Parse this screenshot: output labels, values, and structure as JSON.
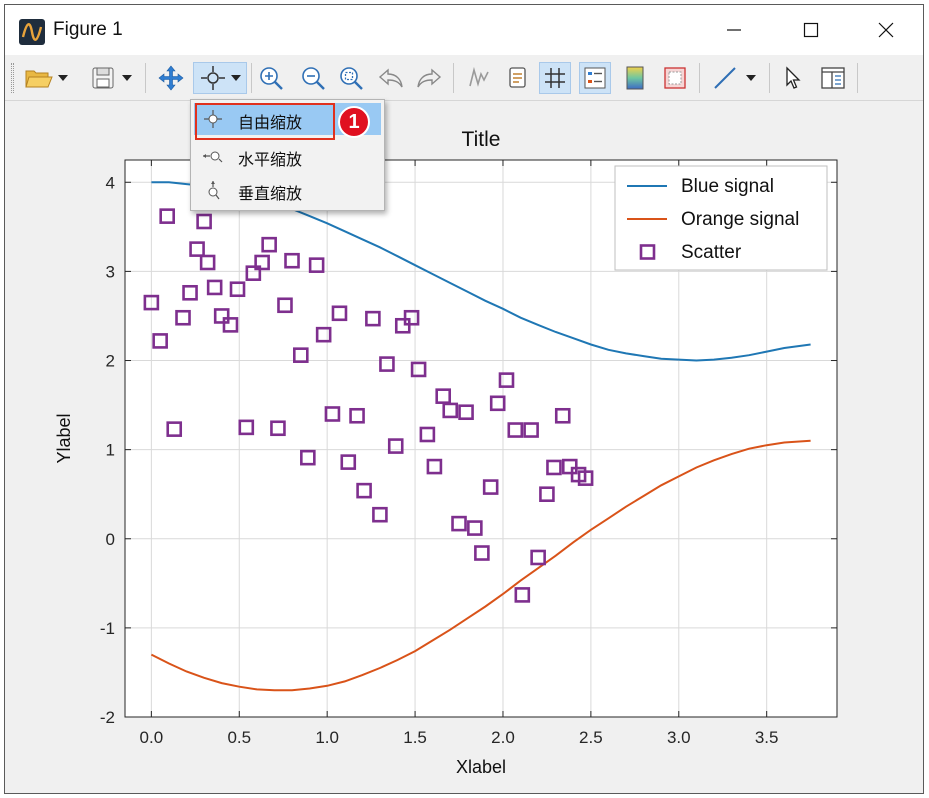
{
  "window": {
    "title": "Figure 1",
    "controls": {
      "minimize": "minimize",
      "maximize": "maximize",
      "close": "close"
    }
  },
  "toolbar": {
    "items": [
      {
        "name": "open-icon"
      },
      {
        "name": "save-icon"
      },
      {
        "name": "pan-icon"
      },
      {
        "name": "zoom-icon"
      },
      {
        "name": "zoom-in-icon"
      },
      {
        "name": "zoom-out-icon"
      },
      {
        "name": "zoom-fit-icon"
      },
      {
        "name": "undo-icon"
      },
      {
        "name": "redo-icon"
      },
      {
        "name": "signal-icon"
      },
      {
        "name": "copy-icon"
      },
      {
        "name": "grid-icon"
      },
      {
        "name": "legend-icon"
      },
      {
        "name": "colormap-icon"
      },
      {
        "name": "frame-icon"
      },
      {
        "name": "line-icon"
      },
      {
        "name": "pointer-icon"
      },
      {
        "name": "panel-icon"
      }
    ]
  },
  "zoom_menu": {
    "items": [
      {
        "label": "自由缩放",
        "selected": true
      },
      {
        "label": "水平缩放",
        "selected": false
      },
      {
        "label": "垂直缩放",
        "selected": false
      }
    ],
    "badge": "1"
  },
  "chart_data": {
    "type": "line",
    "title": "Title",
    "xlabel": "Xlabel",
    "ylabel": "Ylabel",
    "xlim": [
      -0.15,
      3.9
    ],
    "ylim": [
      -2,
      4.25
    ],
    "xticks": [
      "0.0",
      "0.5",
      "1.0",
      "1.5",
      "2.0",
      "2.5",
      "3.0",
      "3.5"
    ],
    "xtick_values": [
      0,
      0.5,
      1.0,
      1.5,
      2.0,
      2.5,
      3.0,
      3.5
    ],
    "yticks": [
      "-2",
      "-1",
      "0",
      "1",
      "2",
      "3",
      "4"
    ],
    "ytick_values": [
      -2,
      -1,
      0,
      1,
      2,
      3,
      4
    ],
    "grid": true,
    "legend_position": "top-right",
    "series": [
      {
        "name": "Blue signal",
        "type": "line",
        "color": "#1f77b4",
        "x": [
          0.0,
          0.1,
          0.2,
          0.3,
          0.4,
          0.5,
          0.6,
          0.7,
          0.8,
          0.9,
          1.0,
          1.1,
          1.2,
          1.3,
          1.4,
          1.5,
          1.6,
          1.7,
          1.8,
          1.9,
          2.0,
          2.1,
          2.2,
          2.3,
          2.4,
          2.5,
          2.6,
          2.7,
          2.8,
          2.9,
          3.0,
          3.1,
          3.2,
          3.3,
          3.4,
          3.5,
          3.6,
          3.75
        ],
        "y": [
          4.0,
          4.0,
          3.98,
          3.96,
          3.92,
          3.88,
          3.83,
          3.76,
          3.7,
          3.62,
          3.54,
          3.45,
          3.36,
          3.27,
          3.17,
          3.07,
          2.97,
          2.87,
          2.77,
          2.67,
          2.58,
          2.48,
          2.4,
          2.32,
          2.25,
          2.18,
          2.12,
          2.08,
          2.05,
          2.02,
          2.01,
          2.0,
          2.01,
          2.03,
          2.06,
          2.1,
          2.14,
          2.18
        ]
      },
      {
        "name": "Orange signal",
        "type": "line",
        "color": "#d95319",
        "x": [
          0.0,
          0.1,
          0.2,
          0.3,
          0.4,
          0.5,
          0.6,
          0.7,
          0.8,
          0.9,
          1.0,
          1.1,
          1.2,
          1.3,
          1.4,
          1.5,
          1.6,
          1.7,
          1.8,
          1.9,
          2.0,
          2.1,
          2.2,
          2.3,
          2.4,
          2.5,
          2.6,
          2.7,
          2.8,
          2.9,
          3.0,
          3.1,
          3.2,
          3.3,
          3.4,
          3.5,
          3.6,
          3.75
        ],
        "y": [
          -1.3,
          -1.4,
          -1.49,
          -1.56,
          -1.62,
          -1.66,
          -1.69,
          -1.7,
          -1.7,
          -1.68,
          -1.65,
          -1.6,
          -1.53,
          -1.45,
          -1.36,
          -1.26,
          -1.14,
          -1.02,
          -0.89,
          -0.76,
          -0.62,
          -0.47,
          -0.33,
          -0.19,
          -0.04,
          0.1,
          0.23,
          0.36,
          0.48,
          0.6,
          0.7,
          0.8,
          0.88,
          0.95,
          1.01,
          1.05,
          1.08,
          1.1
        ]
      },
      {
        "name": "Scatter",
        "type": "scatter",
        "color": "#7e2f8e",
        "marker": "square",
        "x": [
          0.0,
          0.05,
          0.09,
          0.13,
          0.18,
          0.22,
          0.26,
          0.3,
          0.32,
          0.36,
          0.4,
          0.45,
          0.49,
          0.54,
          0.58,
          0.63,
          0.67,
          0.72,
          0.76,
          0.8,
          0.85,
          0.89,
          0.94,
          0.98,
          1.03,
          1.07,
          1.12,
          1.17,
          1.21,
          1.26,
          1.3,
          1.34,
          1.39,
          1.43,
          1.48,
          1.52,
          1.57,
          1.61,
          1.66,
          1.7,
          1.75,
          1.79,
          1.84,
          1.88,
          1.93,
          1.97,
          2.02,
          2.07,
          2.11,
          2.16,
          2.2,
          2.25,
          2.29,
          2.34,
          2.38,
          2.43,
          2.47
        ],
        "y": [
          2.65,
          2.22,
          3.62,
          1.23,
          2.48,
          2.76,
          3.25,
          3.56,
          3.1,
          2.82,
          2.5,
          2.4,
          2.8,
          1.25,
          2.98,
          3.1,
          3.3,
          1.24,
          2.62,
          3.12,
          2.06,
          0.91,
          3.07,
          2.29,
          1.4,
          2.53,
          0.86,
          1.38,
          0.54,
          2.47,
          0.27,
          1.96,
          1.04,
          2.39,
          2.48,
          1.9,
          1.17,
          0.81,
          1.6,
          1.44,
          0.17,
          1.42,
          0.12,
          -0.16,
          0.58,
          1.52,
          1.78,
          1.22,
          -0.63,
          1.22,
          -0.21,
          0.5,
          0.8,
          1.38,
          0.81,
          0.72,
          0.68
        ]
      }
    ]
  }
}
